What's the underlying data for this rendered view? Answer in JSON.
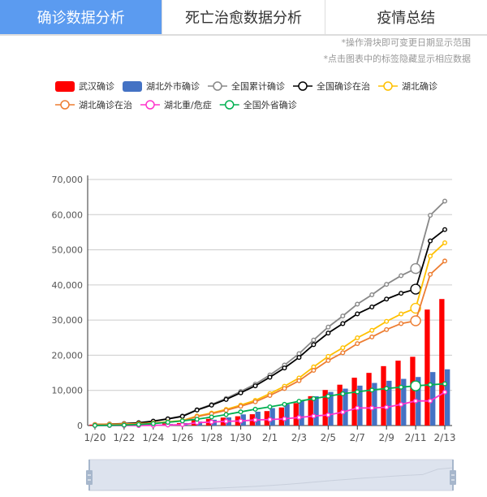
{
  "tabs": [
    {
      "label": "确诊数据分析"
    },
    {
      "label": "死亡治愈数据分析"
    },
    {
      "label": "疫情总结"
    }
  ],
  "notes": [
    "*操作滑块即可变更日期显示范围",
    "*点击图表中的标签隐藏显示相应数据"
  ],
  "chart_data": {
    "type": "bar+line",
    "categories": [
      "1/20",
      "1/21",
      "1/22",
      "1/23",
      "1/24",
      "1/25",
      "1/26",
      "1/27",
      "1/28",
      "1/29",
      "1/30",
      "1/31",
      "2/1",
      "2/2",
      "2/3",
      "2/4",
      "2/5",
      "2/6",
      "2/7",
      "2/8",
      "2/9",
      "2/10",
      "2/11",
      "2/12",
      "2/13"
    ],
    "xtick_labels": [
      "1/20",
      "1/22",
      "1/24",
      "1/26",
      "1/28",
      "1/30",
      "2/1",
      "2/3",
      "2/5",
      "2/7",
      "2/9",
      "2/11",
      "2/13"
    ],
    "ylim": [
      0,
      70000
    ],
    "yticks": [
      "0",
      "10,000",
      "20,000",
      "30,000",
      "40,000",
      "50,000",
      "60,000",
      "70,000"
    ],
    "series": [
      {
        "name": "武汉确诊",
        "kind": "bar",
        "color": "#ff0000",
        "values": [
          258,
          363,
          425,
          495,
          572,
          618,
          698,
          1590,
          1905,
          2261,
          2639,
          3215,
          4109,
          5142,
          6384,
          8351,
          10117,
          11618,
          13603,
          14982,
          16902,
          18454,
          19558,
          32994,
          35991
        ]
      },
      {
        "name": "湖北外市确诊",
        "kind": "bar",
        "color": "#4472c4",
        "values": [
          12,
          12,
          19,
          54,
          157,
          434,
          725,
          1124,
          1649,
          2325,
          3167,
          3938,
          4965,
          6035,
          7138,
          8327,
          9548,
          10494,
          11350,
          12118,
          12729,
          13274,
          13808,
          15212,
          15995
        ]
      },
      {
        "name": "全国累计确诊",
        "kind": "line",
        "color": "#888888",
        "values": [
          291,
          440,
          571,
          830,
          1287,
          1975,
          2744,
          4515,
          5974,
          7711,
          9692,
          11791,
          14380,
          17205,
          20438,
          24324,
          28018,
          31161,
          34546,
          37198,
          40171,
          42638,
          44653,
          59804,
          63851
        ]
      },
      {
        "name": "全国确诊在治",
        "kind": "line",
        "color": "#000000",
        "values": [
          270,
          410,
          530,
          770,
          1210,
          1870,
          2600,
          4409,
          5806,
          7427,
          9308,
          11289,
          13748,
          16369,
          19381,
          23008,
          26302,
          28985,
          31774,
          33738,
          35982,
          37626,
          38800,
          52526,
          55748
        ]
      },
      {
        "name": "湖北确诊",
        "kind": "line",
        "color": "#ffc000",
        "values": [
          270,
          375,
          444,
          549,
          729,
          1052,
          1423,
          2714,
          3554,
          4586,
          5806,
          7153,
          9074,
          11177,
          13522,
          16678,
          19665,
          22112,
          24953,
          27100,
          29631,
          31728,
          33366,
          48206,
          51986
        ]
      },
      {
        "name": "湖北确诊在治",
        "kind": "line",
        "color": "#ed7d31",
        "values": [
          250,
          350,
          400,
          500,
          660,
          960,
          1300,
          2550,
          3350,
          4330,
          5480,
          6750,
          8560,
          10550,
          12750,
          15700,
          18500,
          20700,
          23300,
          25200,
          27300,
          29000,
          29800,
          43000,
          46800
        ]
      },
      {
        "name": "湖北重/危症",
        "kind": "line",
        "color": "#ff33cc",
        "values": [
          0,
          0,
          0,
          0,
          50,
          150,
          250,
          800,
          1000,
          1200,
          1300,
          1600,
          1700,
          1900,
          2300,
          2700,
          3000,
          3800,
          5000,
          5000,
          5200,
          6000,
          7000,
          7000,
          9500
        ]
      },
      {
        "name": "全国外省确诊",
        "kind": "line",
        "color": "#00b050",
        "values": [
          21,
          65,
          127,
          281,
          558,
          923,
          1321,
          1801,
          2420,
          3125,
          3886,
          4638,
          5306,
          6028,
          6916,
          7646,
          8353,
          9049,
          9593,
          10098,
          10540,
          10910,
          11287,
          11598,
          11865
        ]
      }
    ],
    "highlight_index": 22,
    "legend_position": "top-center"
  }
}
